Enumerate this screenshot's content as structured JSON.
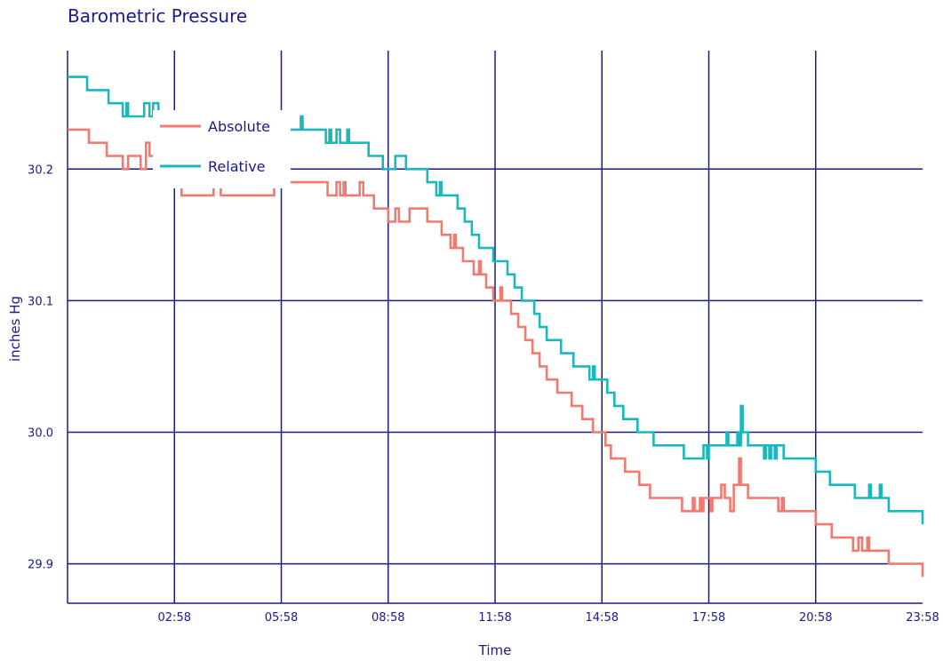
{
  "chart_data": {
    "type": "line",
    "title": "Barometric Pressure",
    "xlabel": "Time",
    "ylabel": "inches Hg",
    "x_tick_labels": [
      "02:58",
      "05:58",
      "08:58",
      "11:58",
      "14:58",
      "17:58",
      "20:58",
      "23:58"
    ],
    "y_tick_labels": [
      "29.9",
      "30.0",
      "30.1",
      "30.2"
    ],
    "y_ticks": [
      29.9,
      30.0,
      30.1,
      30.2
    ],
    "ylim": [
      29.87,
      30.29
    ],
    "x_range_hours": [
      0,
      24
    ],
    "grid": true,
    "legend_position": "top-left",
    "series": [
      {
        "name": "Absolute",
        "color": "#f07a70",
        "points": [
          [
            0.0,
            30.23
          ],
          [
            0.5,
            30.23
          ],
          [
            0.6,
            30.22
          ],
          [
            1.05,
            30.22
          ],
          [
            1.1,
            30.21
          ],
          [
            1.5,
            30.21
          ],
          [
            1.55,
            30.2
          ],
          [
            1.65,
            30.2
          ],
          [
            1.7,
            30.21
          ],
          [
            2.0,
            30.21
          ],
          [
            2.05,
            30.2
          ],
          [
            2.15,
            30.2
          ],
          [
            2.2,
            30.22
          ],
          [
            2.3,
            30.21
          ],
          [
            2.5,
            30.21
          ],
          [
            2.55,
            30.19
          ],
          [
            2.7,
            30.19
          ],
          [
            2.8,
            30.2
          ],
          [
            2.9,
            30.19
          ],
          [
            3.1,
            30.19
          ],
          [
            3.2,
            30.18
          ],
          [
            4.0,
            30.18
          ],
          [
            4.1,
            30.19
          ],
          [
            4.25,
            30.19
          ],
          [
            4.3,
            30.18
          ],
          [
            5.7,
            30.18
          ],
          [
            5.8,
            30.19
          ],
          [
            7.2,
            30.19
          ],
          [
            7.3,
            30.18
          ],
          [
            7.5,
            30.18
          ],
          [
            7.55,
            30.19
          ],
          [
            7.65,
            30.18
          ],
          [
            7.75,
            30.19
          ],
          [
            7.8,
            30.18
          ],
          [
            8.1,
            30.18
          ],
          [
            8.2,
            30.19
          ],
          [
            8.3,
            30.18
          ],
          [
            8.5,
            30.18
          ],
          [
            8.6,
            30.17
          ],
          [
            8.9,
            30.17
          ],
          [
            9.0,
            30.16
          ],
          [
            9.15,
            30.16
          ],
          [
            9.2,
            30.17
          ],
          [
            9.3,
            30.16
          ],
          [
            9.5,
            30.16
          ],
          [
            9.6,
            30.17
          ],
          [
            10.05,
            30.17
          ],
          [
            10.1,
            30.16
          ],
          [
            10.45,
            30.16
          ],
          [
            10.5,
            30.15
          ],
          [
            10.7,
            30.15
          ],
          [
            10.75,
            30.14
          ],
          [
            10.85,
            30.15
          ],
          [
            10.9,
            30.14
          ],
          [
            11.0,
            30.14
          ],
          [
            11.1,
            30.13
          ],
          [
            11.3,
            30.13
          ],
          [
            11.4,
            30.12
          ],
          [
            11.5,
            30.12
          ],
          [
            11.55,
            30.13
          ],
          [
            11.6,
            30.12
          ],
          [
            11.7,
            30.12
          ],
          [
            11.75,
            30.11
          ],
          [
            11.9,
            30.11
          ],
          [
            11.95,
            30.1
          ],
          [
            12.1,
            30.1
          ],
          [
            12.15,
            30.11
          ],
          [
            12.2,
            30.1
          ],
          [
            12.4,
            30.1
          ],
          [
            12.45,
            30.09
          ],
          [
            12.6,
            30.09
          ],
          [
            12.65,
            30.08
          ],
          [
            12.8,
            30.08
          ],
          [
            12.85,
            30.07
          ],
          [
            13.0,
            30.07
          ],
          [
            13.05,
            30.06
          ],
          [
            13.2,
            30.06
          ],
          [
            13.25,
            30.05
          ],
          [
            13.4,
            30.05
          ],
          [
            13.45,
            30.04
          ],
          [
            13.7,
            30.04
          ],
          [
            13.75,
            30.03
          ],
          [
            14.1,
            30.03
          ],
          [
            14.15,
            30.02
          ],
          [
            14.4,
            30.02
          ],
          [
            14.45,
            30.01
          ],
          [
            14.7,
            30.01
          ],
          [
            14.75,
            30.0
          ],
          [
            15.05,
            30.0
          ],
          [
            15.1,
            29.99
          ],
          [
            15.2,
            29.99
          ],
          [
            15.25,
            29.98
          ],
          [
            15.6,
            29.98
          ],
          [
            15.65,
            29.97
          ],
          [
            16.0,
            29.97
          ],
          [
            16.05,
            29.96
          ],
          [
            16.3,
            29.96
          ],
          [
            16.35,
            29.95
          ],
          [
            17.2,
            29.95
          ],
          [
            17.25,
            29.94
          ],
          [
            17.5,
            29.94
          ],
          [
            17.55,
            29.95
          ],
          [
            17.6,
            29.94
          ],
          [
            17.75,
            29.95
          ],
          [
            17.8,
            29.94
          ],
          [
            17.85,
            29.95
          ],
          [
            18.0,
            29.95
          ],
          [
            18.05,
            29.94
          ],
          [
            18.1,
            29.95
          ],
          [
            18.3,
            29.95
          ],
          [
            18.35,
            29.96
          ],
          [
            18.45,
            29.95
          ],
          [
            18.55,
            29.95
          ],
          [
            18.6,
            29.94
          ],
          [
            18.7,
            29.96
          ],
          [
            18.8,
            29.96
          ],
          [
            18.85,
            29.98
          ],
          [
            18.9,
            29.96
          ],
          [
            19.05,
            29.96
          ],
          [
            19.1,
            29.95
          ],
          [
            19.9,
            29.95
          ],
          [
            19.95,
            29.94
          ],
          [
            20.05,
            29.95
          ],
          [
            20.1,
            29.94
          ],
          [
            20.95,
            29.94
          ],
          [
            21.0,
            29.93
          ],
          [
            21.4,
            29.93
          ],
          [
            21.45,
            29.92
          ],
          [
            22.0,
            29.92
          ],
          [
            22.05,
            29.91
          ],
          [
            22.2,
            29.92
          ],
          [
            22.3,
            29.91
          ],
          [
            22.45,
            29.92
          ],
          [
            22.5,
            29.91
          ],
          [
            23.0,
            29.91
          ],
          [
            23.05,
            29.9
          ],
          [
            23.95,
            29.9
          ],
          [
            24.0,
            29.89
          ]
        ]
      },
      {
        "name": "Relative",
        "color": "#1ab8bc",
        "points": [
          [
            0.0,
            30.27
          ],
          [
            0.5,
            30.27
          ],
          [
            0.55,
            30.26
          ],
          [
            1.1,
            30.26
          ],
          [
            1.15,
            30.25
          ],
          [
            1.5,
            30.25
          ],
          [
            1.55,
            30.24
          ],
          [
            1.65,
            30.25
          ],
          [
            1.7,
            30.24
          ],
          [
            2.1,
            30.24
          ],
          [
            2.15,
            30.25
          ],
          [
            2.3,
            30.24
          ],
          [
            2.4,
            30.25
          ],
          [
            2.5,
            30.25
          ],
          [
            2.55,
            30.24
          ],
          [
            2.8,
            30.24
          ],
          [
            2.9,
            30.23
          ],
          [
            6.5,
            30.23
          ],
          [
            6.55,
            30.24
          ],
          [
            6.6,
            30.23
          ],
          [
            7.2,
            30.23
          ],
          [
            7.25,
            30.22
          ],
          [
            7.35,
            30.23
          ],
          [
            7.4,
            30.22
          ],
          [
            7.5,
            30.22
          ],
          [
            7.55,
            30.23
          ],
          [
            7.65,
            30.22
          ],
          [
            7.8,
            30.22
          ],
          [
            7.85,
            30.23
          ],
          [
            7.9,
            30.22
          ],
          [
            8.4,
            30.22
          ],
          [
            8.45,
            30.21
          ],
          [
            8.8,
            30.21
          ],
          [
            8.85,
            30.2
          ],
          [
            9.15,
            30.2
          ],
          [
            9.2,
            30.21
          ],
          [
            9.45,
            30.21
          ],
          [
            9.5,
            30.2
          ],
          [
            10.05,
            30.2
          ],
          [
            10.1,
            30.19
          ],
          [
            10.3,
            30.19
          ],
          [
            10.35,
            30.18
          ],
          [
            10.45,
            30.19
          ],
          [
            10.5,
            30.18
          ],
          [
            10.9,
            30.18
          ],
          [
            10.95,
            30.17
          ],
          [
            11.1,
            30.17
          ],
          [
            11.15,
            30.16
          ],
          [
            11.3,
            30.16
          ],
          [
            11.35,
            30.15
          ],
          [
            11.5,
            30.15
          ],
          [
            11.55,
            30.14
          ],
          [
            11.9,
            30.14
          ],
          [
            11.95,
            30.13
          ],
          [
            12.3,
            30.13
          ],
          [
            12.35,
            30.12
          ],
          [
            12.5,
            30.12
          ],
          [
            12.55,
            30.11
          ],
          [
            12.7,
            30.11
          ],
          [
            12.75,
            30.1
          ],
          [
            13.05,
            30.1
          ],
          [
            13.1,
            30.09
          ],
          [
            13.2,
            30.09
          ],
          [
            13.25,
            30.08
          ],
          [
            13.4,
            30.08
          ],
          [
            13.45,
            30.07
          ],
          [
            13.8,
            30.07
          ],
          [
            13.85,
            30.06
          ],
          [
            14.15,
            30.06
          ],
          [
            14.2,
            30.05
          ],
          [
            14.6,
            30.05
          ],
          [
            14.65,
            30.04
          ],
          [
            14.75,
            30.05
          ],
          [
            14.8,
            30.04
          ],
          [
            15.1,
            30.04
          ],
          [
            15.15,
            30.03
          ],
          [
            15.3,
            30.03
          ],
          [
            15.35,
            30.02
          ],
          [
            15.55,
            30.02
          ],
          [
            15.6,
            30.01
          ],
          [
            15.95,
            30.01
          ],
          [
            16.0,
            30.0
          ],
          [
            16.4,
            30.0
          ],
          [
            16.45,
            29.99
          ],
          [
            17.25,
            29.99
          ],
          [
            17.3,
            29.98
          ],
          [
            17.8,
            29.98
          ],
          [
            17.85,
            29.99
          ],
          [
            17.95,
            29.98
          ],
          [
            18.0,
            29.99
          ],
          [
            18.45,
            29.99
          ],
          [
            18.5,
            30.0
          ],
          [
            18.55,
            29.99
          ],
          [
            18.75,
            29.99
          ],
          [
            18.8,
            30.0
          ],
          [
            18.85,
            29.99
          ],
          [
            18.9,
            30.02
          ],
          [
            18.95,
            30.0
          ],
          [
            19.05,
            30.0
          ],
          [
            19.1,
            29.99
          ],
          [
            19.5,
            29.99
          ],
          [
            19.55,
            29.98
          ],
          [
            19.6,
            29.99
          ],
          [
            19.7,
            29.98
          ],
          [
            19.75,
            29.99
          ],
          [
            19.85,
            29.98
          ],
          [
            19.9,
            29.99
          ],
          [
            20.05,
            29.99
          ],
          [
            20.1,
            29.98
          ],
          [
            20.95,
            29.98
          ],
          [
            21.0,
            29.97
          ],
          [
            21.35,
            29.97
          ],
          [
            21.4,
            29.96
          ],
          [
            22.05,
            29.96
          ],
          [
            22.1,
            29.95
          ],
          [
            22.45,
            29.95
          ],
          [
            22.5,
            29.96
          ],
          [
            22.55,
            29.95
          ],
          [
            22.75,
            29.95
          ],
          [
            22.8,
            29.96
          ],
          [
            22.85,
            29.95
          ],
          [
            23.0,
            29.95
          ],
          [
            23.05,
            29.94
          ],
          [
            23.95,
            29.94
          ],
          [
            24.0,
            29.93
          ]
        ]
      }
    ]
  }
}
